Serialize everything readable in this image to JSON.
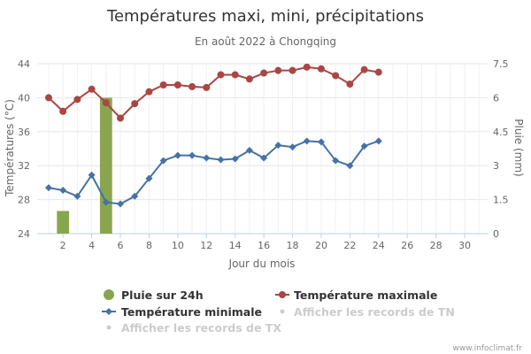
{
  "chart_data": {
    "type": "line",
    "title": "Températures maxi, mini, précipitations",
    "subtitle": "En août 2022 à Chongqing",
    "xlabel": "Jour du mois",
    "ylabel_left": "Températures (°C)",
    "ylabel_right": "Pluie (mm)",
    "x_ticks": [
      "2",
      "4",
      "6",
      "8",
      "10",
      "12",
      "14",
      "16",
      "18",
      "20",
      "22",
      "24",
      "26",
      "28",
      "30"
    ],
    "y_left_ticks": [
      "24",
      "28",
      "32",
      "36",
      "40",
      "44"
    ],
    "y_right_ticks": [
      "0",
      "1.5",
      "3",
      "4.5",
      "6",
      "7.5"
    ],
    "x_range": [
      0.2,
      31.6
    ],
    "y_left_range": [
      24,
      44
    ],
    "y_right_range": [
      0,
      7.5
    ],
    "grid": true,
    "legend_position": "bottom",
    "credit": "www.infoclimat.fr",
    "series": [
      {
        "name": "Pluie sur 24h",
        "kind": "bar",
        "axis": "right",
        "color": "#89a54e",
        "x": [
          2,
          5
        ],
        "values": [
          1.0,
          6.0
        ]
      },
      {
        "name": "Température maximale",
        "kind": "line",
        "axis": "left",
        "marker": "circle",
        "color": "#aa4643",
        "x": [
          1,
          2,
          3,
          4,
          5,
          6,
          7,
          8,
          9,
          10,
          11,
          12,
          13,
          14,
          15,
          16,
          17,
          18,
          19,
          20,
          21,
          22,
          23,
          24
        ],
        "values": [
          40.0,
          38.4,
          39.8,
          41.0,
          39.4,
          37.6,
          39.3,
          40.7,
          41.5,
          41.5,
          41.3,
          41.2,
          42.7,
          42.7,
          42.2,
          42.9,
          43.2,
          43.2,
          43.6,
          43.4,
          42.6,
          41.6,
          43.3,
          43.0
        ]
      },
      {
        "name": "Température minimale",
        "kind": "line",
        "axis": "left",
        "marker": "diamond",
        "color": "#4572a7",
        "x": [
          1,
          2,
          3,
          4,
          5,
          6,
          7,
          8,
          9,
          10,
          11,
          12,
          13,
          14,
          15,
          16,
          17,
          18,
          19,
          20,
          21,
          22,
          23,
          24
        ],
        "values": [
          29.4,
          29.1,
          28.4,
          30.9,
          27.7,
          27.5,
          28.4,
          30.5,
          32.6,
          33.2,
          33.2,
          32.9,
          32.7,
          32.8,
          33.8,
          32.9,
          34.4,
          34.2,
          34.9,
          34.8,
          32.6,
          32.0,
          34.3,
          34.9
        ]
      }
    ]
  },
  "legend": {
    "items": [
      {
        "label": "Pluie sur 24h",
        "symbol": "circle",
        "color": "#89a54e",
        "active": true
      },
      {
        "label": "Température maximale",
        "symbol": "line-circle",
        "color": "#aa4643",
        "active": true
      },
      {
        "label": "Température minimale",
        "symbol": "line-diamond",
        "color": "#4572a7",
        "active": true
      },
      {
        "label": "Afficher les records de TN",
        "symbol": "dot",
        "color": "#cccccc",
        "active": false
      },
      {
        "label": "Afficher les records de TX",
        "symbol": "dot",
        "color": "#cccccc",
        "active": false
      }
    ]
  }
}
